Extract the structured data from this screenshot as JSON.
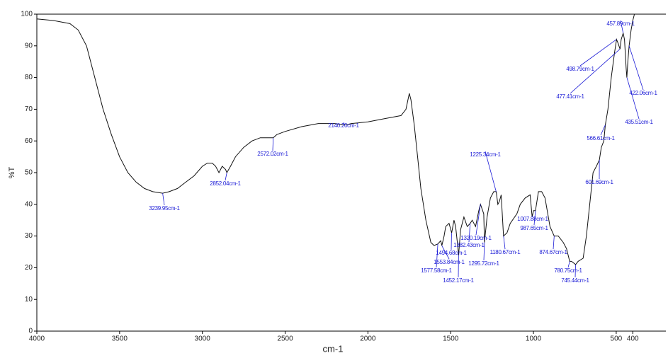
{
  "chart_data": {
    "type": "line",
    "x_label": "cm-1",
    "y_label": "%T",
    "xlim": [
      4000,
      200
    ],
    "ylim": [
      0,
      100
    ],
    "xticks": [
      4000,
      3500,
      3000,
      2500,
      2000,
      1500,
      1000,
      500,
      400
    ],
    "yticks": [
      0,
      10,
      20,
      30,
      40,
      50,
      60,
      70,
      80,
      90,
      100
    ],
    "color": "#111111",
    "annotation_color": "#1a1ad6",
    "x": [
      4000,
      3900,
      3800,
      3750,
      3700,
      3650,
      3600,
      3550,
      3500,
      3450,
      3400,
      3350,
      3300,
      3240,
      3200,
      3150,
      3100,
      3050,
      3000,
      2970,
      2940,
      2920,
      2900,
      2880,
      2860,
      2852,
      2830,
      2800,
      2750,
      2700,
      2650,
      2600,
      2572,
      2550,
      2500,
      2400,
      2300,
      2200,
      2140,
      2100,
      2000,
      1900,
      1800,
      1770,
      1750,
      1740,
      1720,
      1700,
      1680,
      1650,
      1620,
      1600,
      1578,
      1560,
      1553,
      1540,
      1530,
      1510,
      1494,
      1480,
      1470,
      1460,
      1452,
      1440,
      1420,
      1400,
      1382,
      1370,
      1350,
      1330,
      1320,
      1300,
      1296,
      1280,
      1260,
      1240,
      1225,
      1215,
      1205,
      1195,
      1181,
      1160,
      1140,
      1100,
      1080,
      1050,
      1020,
      1008,
      1000,
      988,
      970,
      950,
      930,
      900,
      875,
      850,
      820,
      800,
      781,
      770,
      745,
      730,
      700,
      680,
      660,
      640,
      620,
      602,
      590,
      575,
      566,
      550,
      530,
      510,
      498,
      490,
      477,
      470,
      458,
      450,
      440,
      436,
      430,
      422,
      410,
      400,
      390
    ],
    "values": [
      98.5,
      98,
      97,
      95,
      90,
      80,
      70,
      62,
      55,
      50,
      47,
      45,
      44,
      43.5,
      44,
      45,
      47,
      49,
      52,
      53,
      53,
      52,
      50,
      52,
      51,
      50,
      52,
      55,
      58,
      60,
      61,
      61,
      61,
      62,
      63,
      64.5,
      65.5,
      65.5,
      65,
      65.5,
      66,
      67,
      68,
      70,
      75,
      73,
      65,
      55,
      45,
      35,
      28,
      27,
      27.5,
      28.5,
      27,
      30,
      33,
      34,
      31,
      35,
      33,
      28,
      24,
      32,
      36,
      33,
      34,
      35,
      33,
      38,
      40,
      37,
      28,
      36,
      42,
      44,
      44,
      40,
      41,
      43,
      30,
      31,
      34,
      37,
      40,
      42,
      43,
      36,
      38,
      38,
      44,
      44,
      42,
      33,
      30,
      30,
      28,
      26,
      22,
      22,
      21,
      22,
      23,
      30,
      40,
      50,
      52,
      54,
      58,
      60,
      65,
      70,
      80,
      88,
      92,
      91,
      89,
      92,
      94,
      92,
      83,
      80,
      85,
      90,
      95,
      98,
      100
    ],
    "annotations": [
      {
        "text": "3239.95cm-1",
        "x": 3239.95,
        "y": 43.5
      },
      {
        "text": "2852.04cm-1",
        "x": 2852.04,
        "y": 50
      },
      {
        "text": "2572.02cm-1",
        "x": 2572.02,
        "y": 61
      },
      {
        "text": "2140.20cm-1",
        "x": 2140.2,
        "y": 65
      },
      {
        "text": "1225.34cm-1",
        "x": 1225.34,
        "y": 44
      },
      {
        "text": "1320.19cm-1",
        "x": 1320.19,
        "y": 40
      },
      {
        "text": "1382.43cm-1",
        "x": 1382.43,
        "y": 34
      },
      {
        "text": "1494.68cm-1",
        "x": 1494.68,
        "y": 31
      },
      {
        "text": "1553.84cm-1",
        "x": 1553.84,
        "y": 27
      },
      {
        "text": "1577.58cm-1",
        "x": 1577.58,
        "y": 27.5
      },
      {
        "text": "1452.17cm-1",
        "x": 1452.17,
        "y": 24
      },
      {
        "text": "1295.72cm-1",
        "x": 1295.72,
        "y": 28
      },
      {
        "text": "1180.67cm-1",
        "x": 1180.67,
        "y": 30
      },
      {
        "text": "1007.88cm-1",
        "x": 1007.88,
        "y": 36
      },
      {
        "text": "987.65cm-1",
        "x": 987.65,
        "y": 38
      },
      {
        "text": "874.67cm-1",
        "x": 874.67,
        "y": 30
      },
      {
        "text": "780.75cm-1",
        "x": 780.75,
        "y": 22
      },
      {
        "text": "745.44cm-1",
        "x": 745.44,
        "y": 21
      },
      {
        "text": "601.69cm-1",
        "x": 601.69,
        "y": 54
      },
      {
        "text": "566.61cm-1",
        "x": 566.61,
        "y": 65
      },
      {
        "text": "498.79cm-1",
        "x": 498.79,
        "y": 92
      },
      {
        "text": "477.41cm-1",
        "x": 477.41,
        "y": 89
      },
      {
        "text": "457.89cm-1",
        "x": 457.89,
        "y": 94
      },
      {
        "text": "422.06cm-1",
        "x": 422.06,
        "y": 90
      },
      {
        "text": "435.51cm-1",
        "x": 435.51,
        "y": 80
      }
    ]
  }
}
